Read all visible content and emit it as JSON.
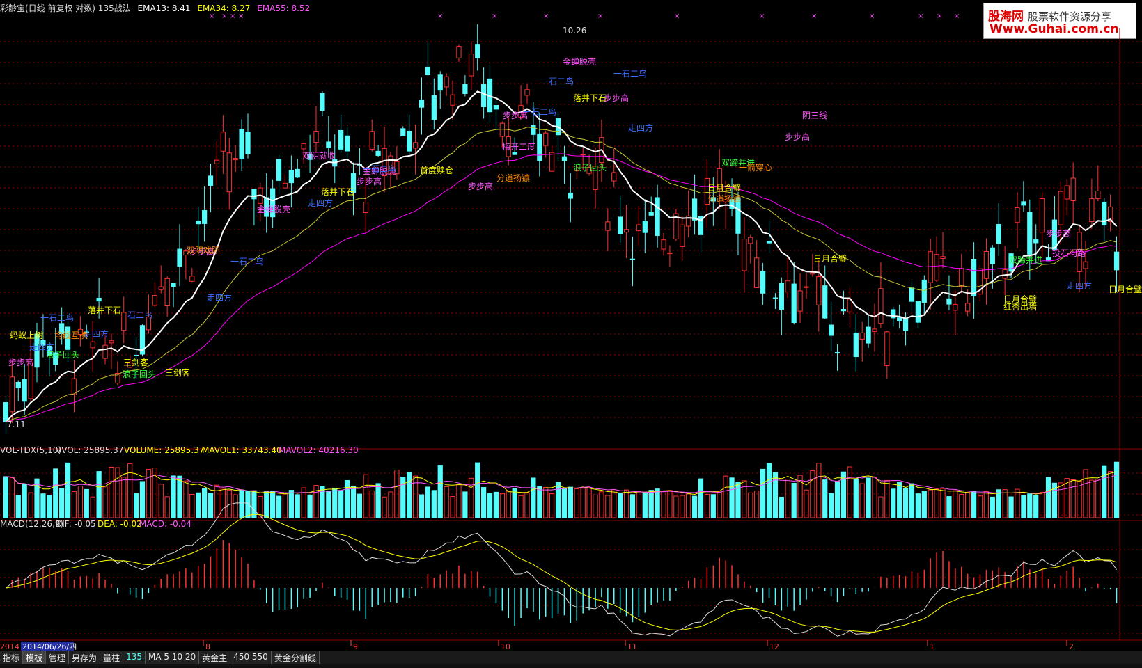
{
  "header": {
    "title": "彩龄宝(日线 前复权 对数) 135战法",
    "ema13": "EMA13: 8.41",
    "ema34": "EMA34: 8.27",
    "ema55": "EMA55: 8.52"
  },
  "logo": {
    "line1a": "股海网",
    "line1b": "股票软件资源分享",
    "line2": "Www.Guhai.com.cn"
  },
  "price_labels": {
    "high": "10.26",
    "low": "7.11"
  },
  "vol_header": {
    "name": "VOL-TDX(5,10)",
    "vvol": "VVOL: 25895.37",
    "volume": "VOLUME: 25895.37",
    "mavol1": "MAVOL1: 33743.40",
    "mavol2": "MAVOL2: 40216.30"
  },
  "macd_header": {
    "name": "MACD(12,26,9)",
    "dif": "DIF: -0.05",
    "dea": "DEA: -0.02",
    "macd": "MACD: -0.04"
  },
  "date_axis": {
    "current": "2014/06/26/四",
    "prefix": "2014",
    "months": [
      "8",
      "9",
      "10",
      "11",
      "12",
      "1",
      "2"
    ]
  },
  "tabs": [
    "指标",
    "模板",
    "管理",
    "另存为",
    "量柱",
    "135",
    "MA  5  10  20",
    "黄金主",
    "450  550",
    "黄金分割线"
  ],
  "colors": {
    "up": "#ff3232",
    "down": "#54fcfc",
    "ema13": "#ffffff",
    "ema34": "#c8c832",
    "ema55": "#ff00ff"
  },
  "annotations": [
    {
      "text": "步步高",
      "x": 30,
      "y": 525,
      "c": "#ff55ff"
    },
    {
      "text": "蚂蚁上树",
      "x": 38,
      "y": 486,
      "c": "#ffff00"
    },
    {
      "text": "走四方",
      "x": 60,
      "y": 503,
      "c": "#3a6bff"
    },
    {
      "text": "浪子回头",
      "x": 90,
      "y": 514,
      "c": "#33ff33"
    },
    {
      "text": "一石二鸟",
      "x": 82,
      "y": 461,
      "c": "#3a6bff"
    },
    {
      "text": "均线互换",
      "x": 102,
      "y": 486,
      "c": "#ff8c00"
    },
    {
      "text": "走四方",
      "x": 138,
      "y": 484,
      "c": "#3a6bff"
    },
    {
      "text": "落井下石",
      "x": 150,
      "y": 450,
      "c": "#ffff00"
    },
    {
      "text": "一石二鸟",
      "x": 195,
      "y": 457,
      "c": "#3a6bff"
    },
    {
      "text": "三剑客",
      "x": 195,
      "y": 525,
      "c": "#ffff00"
    },
    {
      "text": "浪子回头",
      "x": 200,
      "y": 542,
      "c": "#33ff33"
    },
    {
      "text": "三剑客",
      "x": 255,
      "y": 540,
      "c": "#ffff00"
    },
    {
      "text": "走四方",
      "x": 315,
      "y": 432,
      "c": "#3a6bff"
    },
    {
      "text": "一石二鸟",
      "x": 355,
      "y": 380,
      "c": "#3a6bff"
    },
    {
      "text": "步步高",
      "x": 290,
      "y": 366,
      "c": "#ff55ff"
    },
    {
      "text": "金蝉脱壳",
      "x": 393,
      "y": 305,
      "c": "#ff55ff"
    },
    {
      "text": "双阴戏阳",
      "x": 292,
      "y": 364,
      "c": "#ff8c00"
    },
    {
      "text": "双阴就收",
      "x": 458,
      "y": 228,
      "c": "#ff55ff"
    },
    {
      "text": "走四方",
      "x": 460,
      "y": 296,
      "c": "#3a6bff"
    },
    {
      "text": "落井下石",
      "x": 485,
      "y": 280,
      "c": "#ffff00"
    },
    {
      "text": "金蝉脱壳",
      "x": 545,
      "y": 250,
      "c": "#ff55ff"
    },
    {
      "text": "步步高",
      "x": 530,
      "y": 265,
      "c": "#ff55ff"
    },
    {
      "text": "一石二鸟",
      "x": 545,
      "y": 247,
      "c": "#3a6bff"
    },
    {
      "text": "首度赎仓",
      "x": 627,
      "y": 249,
      "c": "#ffff00"
    },
    {
      "text": "步步高",
      "x": 690,
      "y": 272,
      "c": "#ff55ff"
    },
    {
      "text": "分道扬镳",
      "x": 737,
      "y": 260,
      "c": "#ff8c00"
    },
    {
      "text": "梅开二度",
      "x": 745,
      "y": 215,
      "c": "#ff55ff"
    },
    {
      "text": "步步高",
      "x": 740,
      "y": 170,
      "c": "#ff55ff"
    },
    {
      "text": "一石二鸟",
      "x": 775,
      "y": 165,
      "c": "#3a6bff"
    },
    {
      "text": "金蝉脱壳",
      "x": 832,
      "y": 93,
      "c": "#ff55ff"
    },
    {
      "text": "一石二鸟",
      "x": 800,
      "y": 121,
      "c": "#3a6bff"
    },
    {
      "text": "落井下石",
      "x": 847,
      "y": 145,
      "c": "#ffff00"
    },
    {
      "text": "步步高",
      "x": 885,
      "y": 145,
      "c": "#ff55ff"
    },
    {
      "text": "一石二鸟",
      "x": 905,
      "y": 110,
      "c": "#3a6bff"
    },
    {
      "text": "浪子回头",
      "x": 847,
      "y": 245,
      "c": "#33ff33"
    },
    {
      "text": "走四方",
      "x": 920,
      "y": 188,
      "c": "#3a6bff"
    },
    {
      "text": "日月合璧",
      "x": 1040,
      "y": 274,
      "c": "#ffff00"
    },
    {
      "text": "分道扬镳",
      "x": 1040,
      "y": 290,
      "c": "#ff8c00"
    },
    {
      "text": "双蹄并进",
      "x": 1060,
      "y": 238,
      "c": "#33ff33"
    },
    {
      "text": "一箭穿心",
      "x": 1085,
      "y": 245,
      "c": "#ff8c00"
    },
    {
      "text": "阴三线",
      "x": 1170,
      "y": 170,
      "c": "#ff55ff"
    },
    {
      "text": "步步高",
      "x": 1145,
      "y": 201,
      "c": "#ff55ff"
    },
    {
      "text": "日月合璧",
      "x": 1192,
      "y": 376,
      "c": "#ffff00"
    },
    {
      "text": "日月合璧",
      "x": 1465,
      "y": 434,
      "c": "#ffff00"
    },
    {
      "text": "红杏出墙",
      "x": 1465,
      "y": 445,
      "c": "#ffff00"
    },
    {
      "text": "双蹄并进",
      "x": 1473,
      "y": 378,
      "c": "#33ff33"
    },
    {
      "text": "投石问路",
      "x": 1535,
      "y": 368,
      "c": "#ff55ff"
    },
    {
      "text": "步步高",
      "x": 1520,
      "y": 340,
      "c": "#ff55ff"
    },
    {
      "text": "走四方",
      "x": 1550,
      "y": 415,
      "c": "#3a6bff"
    },
    {
      "text": "日月合璧",
      "x": 1616,
      "y": 420,
      "c": "#ffff00"
    }
  ],
  "chart_data": [
    {
      "type": "candlestick",
      "title": "彩龄宝(日线 前复权 对数) 135战法",
      "ylim": [
        7.11,
        10.26
      ],
      "series_names": [
        "EMA13",
        "EMA34",
        "EMA55"
      ],
      "last_values": {
        "EMA13": 8.41,
        "EMA34": 8.27,
        "EMA55": 8.52
      },
      "x_ticks": [
        "2014/06/26/四",
        "8",
        "9",
        "10",
        "11",
        "12",
        "1",
        "2"
      ],
      "highest": 10.26,
      "lowest": 7.11
    },
    {
      "type": "bar",
      "title": "VOL-TDX(5,10)",
      "series_names": [
        "VOLUME",
        "MAVOL1",
        "MAVOL2"
      ],
      "last_values": {
        "VVOL": 25895.37,
        "VOLUME": 25895.37,
        "MAVOL1": 33743.4,
        "MAVOL2": 40216.3
      }
    },
    {
      "type": "bar",
      "title": "MACD(12,26,9)",
      "series_names": [
        "DIF",
        "DEA",
        "MACD"
      ],
      "last_values": {
        "DIF": -0.05,
        "DEA": -0.02,
        "MACD": -0.04
      }
    }
  ]
}
